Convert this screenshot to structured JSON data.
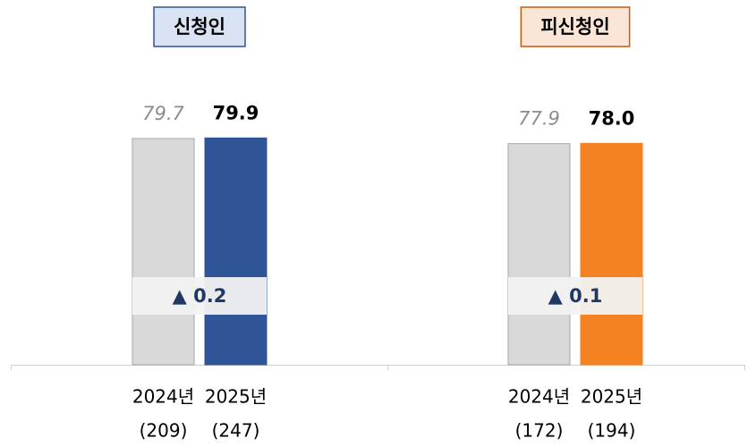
{
  "chart_data": [
    {
      "type": "bar",
      "title": "신청인",
      "categories": [
        "2024년",
        "2025년"
      ],
      "n_labels": [
        "(209)",
        "(247)"
      ],
      "values": [
        79.7,
        79.9
      ],
      "colors": [
        "#d9d9d9",
        "#2f5597"
      ],
      "title_fill": "#dae3f3",
      "title_border": "#2f5597",
      "annotation": "▲ 0.2",
      "ylim": [
        0,
        80
      ]
    },
    {
      "type": "bar",
      "title": "피신청인",
      "categories": [
        "2024년",
        "2025년"
      ],
      "n_labels": [
        "(172)",
        "(194)"
      ],
      "values": [
        77.9,
        78.0
      ],
      "value_labels": [
        "77.9",
        "78.0"
      ],
      "colors": [
        "#d9d9d9",
        "#f58220"
      ],
      "title_fill": "#fbe5d6",
      "title_border": "#c55a11",
      "annotation": "▲ 0.1",
      "ylim": [
        0,
        80
      ]
    }
  ]
}
